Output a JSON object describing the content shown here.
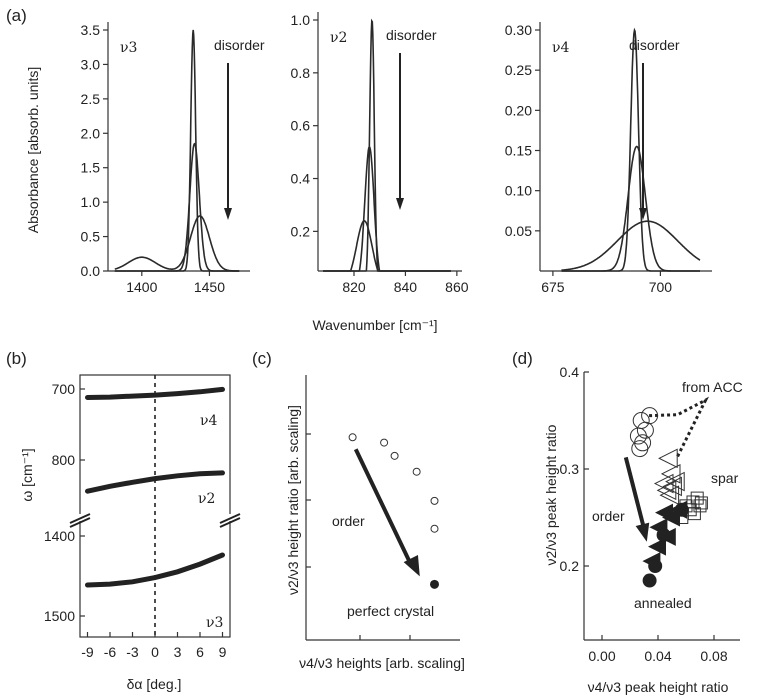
{
  "chart_data": [
    {
      "type": "line",
      "panel": "(a)",
      "ylabel": "Absorbance [absorb. units]",
      "xlim": [
        1375,
        1480
      ],
      "ylim": [
        0,
        3.5
      ],
      "xticks": [
        "1400",
        "1450"
      ],
      "yticks": [
        "0.0",
        "0.5",
        "1.0",
        "1.5",
        "2.0",
        "2.5",
        "3.0",
        "3.5"
      ],
      "mode": "ν3",
      "annotation": "disorder",
      "series": [
        {
          "peaks": [
            {
              "center": 1438,
              "height": 3.5,
              "width": 1.8
            }
          ]
        },
        {
          "peaks": [
            {
              "center": 1439,
              "height": 1.85,
              "width": 3.5
            }
          ]
        },
        {
          "peaks": [
            {
              "center": 1443,
              "height": 0.8,
              "width": 7
            },
            {
              "center": 1400,
              "height": 0.2,
              "width": 10
            }
          ]
        }
      ]
    },
    {
      "type": "line",
      "xlim": [
        806,
        862
      ],
      "ylim": [
        0.05,
        1.0
      ],
      "xticks": [
        "820",
        "840",
        "860"
      ],
      "yticks": [
        "0.2",
        "0.4",
        "0.6",
        "0.8",
        "1.0"
      ],
      "xlabel": "Wavenumber [cm⁻¹]",
      "mode": "ν2",
      "annotation": "disorder",
      "series": [
        {
          "peaks": [
            {
              "center": 827,
              "height": 1.0,
              "width": 0.9
            }
          ]
        },
        {
          "peaks": [
            {
              "center": 826,
              "height": 0.52,
              "width": 1.8
            }
          ]
        },
        {
          "peaks": [
            {
              "center": 824,
              "height": 0.24,
              "width": 3
            },
            {
              "center": 852,
              "height": 0.05,
              "width": 4
            }
          ]
        }
      ]
    },
    {
      "type": "line",
      "xlim": [
        672,
        712
      ],
      "ylim": [
        0,
        0.3
      ],
      "xticks": [
        "675",
        "700"
      ],
      "yticks": [
        "0.05",
        "0.10",
        "0.15",
        "0.20",
        "0.25",
        "0.30"
      ],
      "mode": "ν4",
      "annotation": "disorder",
      "series": [
        {
          "peaks": [
            {
              "center": 694,
              "height": 0.3,
              "width": 0.9
            }
          ]
        },
        {
          "peaks": [
            {
              "center": 694.5,
              "height": 0.155,
              "width": 2
            }
          ]
        },
        {
          "peaks": [
            {
              "center": 697,
              "height": 0.062,
              "width": 7
            }
          ]
        }
      ]
    },
    {
      "type": "line",
      "panel": "(b)",
      "xlabel": "δα [deg.]",
      "ylabel": "ω [cm⁻¹]",
      "xticks": [
        "-9",
        "-6",
        "-3",
        "0",
        "3",
        "6",
        "9"
      ],
      "yticks_upper": [
        "700",
        "800"
      ],
      "yticks_lower": [
        "1400",
        "1500"
      ],
      "xlim": [
        -10,
        10
      ],
      "series": [
        {
          "name": "ν4",
          "x": [
            -9,
            -6,
            -3,
            0,
            3,
            6,
            9
          ],
          "y": [
            698.5,
            698,
            696.8,
            695.5,
            693.7,
            691.4,
            688.5
          ]
        },
        {
          "name": "ν2",
          "x": [
            -9,
            -6,
            -3,
            0,
            3,
            6,
            9
          ],
          "y": [
            814,
            808,
            803,
            798.5,
            795,
            792.5,
            791.5
          ]
        },
        {
          "name": "ν3",
          "x": [
            -9,
            -6,
            -3,
            0,
            3,
            6,
            9
          ],
          "y": [
            1470,
            1468.5,
            1464.5,
            1457.5,
            1447.5,
            1434.5,
            1419
          ]
        }
      ]
    },
    {
      "type": "scatter",
      "panel": "(c)",
      "xlabel": "ν4/ν3  heights [arb. scaling]",
      "ylabel": "ν2/ν3  height ratio [arb. scaling]",
      "xlim": [
        0,
        1
      ],
      "ylim": [
        0,
        1
      ],
      "arrow_label": "order",
      "point_label": "perfect crystal",
      "series": [
        {
          "marker": "open-circle",
          "x": [
            0.12,
            0.42,
            0.52,
            0.73,
            0.9,
            0.9
          ],
          "y": [
            0.765,
            0.745,
            0.695,
            0.635,
            0.525,
            0.42
          ]
        },
        {
          "marker": "filled-circle",
          "x": [
            0.9
          ],
          "y": [
            0.21
          ]
        }
      ],
      "arrow": {
        "from": [
          0.15,
          0.72
        ],
        "to": [
          0.76,
          0.24
        ]
      }
    },
    {
      "type": "scatter",
      "panel": "(d)",
      "xlabel": "ν4/ν3  peak height ratio",
      "ylabel": "ν2/ν3  peak height ratio",
      "xlim": [
        -0.01,
        0.1
      ],
      "ylim": [
        0.15,
        0.4
      ],
      "xticks": [
        "0.00",
        "0.04",
        "0.08"
      ],
      "yticks": [
        "0.2",
        "0.3",
        "0.4"
      ],
      "labels": {
        "acc": "from ACC",
        "spar": "spar",
        "order": "order",
        "annealed": "annealed"
      },
      "series": [
        {
          "marker": "open-circle",
          "x": [
            0.028,
            0.031,
            0.026,
            0.029,
            0.027,
            0.034
          ],
          "y": [
            0.35,
            0.34,
            0.334,
            0.327,
            0.321,
            0.355
          ]
        },
        {
          "marker": "open-triangle-left",
          "x": [
            0.048,
            0.05,
            0.045,
            0.051,
            0.047,
            0.053,
            0.049
          ],
          "y": [
            0.311,
            0.295,
            0.285,
            0.282,
            0.278,
            0.287,
            0.273
          ]
        },
        {
          "marker": "open-square",
          "x": [
            0.06,
            0.065,
            0.068,
            0.071,
            0.063,
            0.066,
            0.07,
            0.057
          ],
          "y": [
            0.262,
            0.266,
            0.27,
            0.265,
            0.258,
            0.254,
            0.262,
            0.25
          ]
        },
        {
          "marker": "filled-triangle-left",
          "x": [
            0.045,
            0.05,
            0.041,
            0.055,
            0.047,
            0.04,
            0.036
          ],
          "y": [
            0.255,
            0.25,
            0.24,
            0.258,
            0.23,
            0.22,
            0.205
          ]
        },
        {
          "marker": "filled-circle",
          "x": [
            0.057,
            0.044,
            0.038,
            0.034
          ],
          "y": [
            0.258,
            0.232,
            0.2,
            0.185
          ]
        }
      ],
      "arrow": {
        "from": [
          0.017,
          0.312
        ],
        "to": [
          0.032,
          0.225
        ]
      },
      "dotted": {
        "x": [
          0.054,
          0.074,
          0.054,
          0.033
        ],
        "y": [
          0.313,
          0.371,
          0.356,
          0.355
        ]
      }
    }
  ]
}
